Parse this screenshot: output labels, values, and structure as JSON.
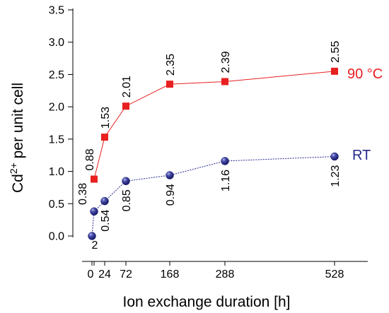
{
  "chart_data": {
    "type": "line",
    "xlabel": "Ion exchange duration [h]",
    "ylabel": "Cd2+ per unit cell",
    "ylabel_base": "Cd",
    "ylabel_sup": "2+",
    "ylabel_rest": " per unit cell",
    "x_scale": "piecewise (0–2 h expanded)",
    "x_ticks": [
      0,
      2,
      24,
      72,
      168,
      288,
      528
    ],
    "x_tick_labels": [
      "0",
      "2",
      "24",
      "72",
      "168",
      "288",
      "528"
    ],
    "ylim": [
      0.0,
      3.5
    ],
    "y_ticks": [
      0.0,
      0.5,
      1.0,
      1.5,
      2.0,
      2.5,
      3.0,
      3.5
    ],
    "y_tick_labels": [
      "0.0",
      "0.5",
      "1.0",
      "1.5",
      "2.0",
      "2.5",
      "3.0",
      "3.5"
    ],
    "grid": false,
    "series": [
      {
        "name": "90 °C",
        "color": "#e8201f",
        "marker": "square",
        "x": [
          2,
          24,
          72,
          168,
          288,
          528
        ],
        "y": [
          0.88,
          1.53,
          2.01,
          2.35,
          2.39,
          2.55
        ],
        "labels": [
          "0.88",
          "1.53",
          "2.01",
          "2.35",
          "2.39",
          "2.55"
        ]
      },
      {
        "name": "RT",
        "color": "#26298c",
        "marker": "sphere",
        "x": [
          0,
          2,
          24,
          72,
          168,
          288,
          528
        ],
        "y": [
          0.0,
          0.38,
          0.54,
          0.85,
          0.94,
          1.16,
          1.23
        ],
        "labels": [
          "",
          "0.38",
          "0.54",
          "0.85",
          "0.94",
          "1.16",
          "1.23"
        ]
      }
    ]
  }
}
